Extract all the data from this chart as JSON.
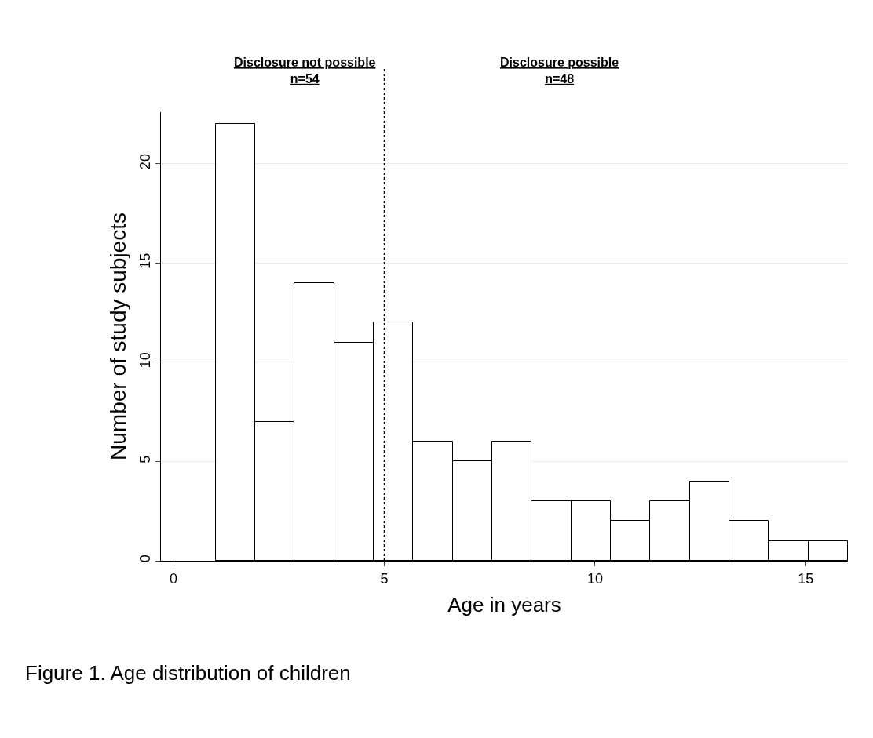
{
  "chart_data": {
    "type": "histogram",
    "xlabel": "Age in years",
    "ylabel": "Number of study subjects",
    "bins": [
      1,
      1.9375,
      2.875,
      3.8125,
      4.75,
      5.6875,
      6.625,
      7.5625,
      8.5,
      9.4375,
      10.375,
      11.3125,
      12.25,
      13.1875,
      14.125,
      15.0625,
      16
    ],
    "values": [
      22,
      7,
      14,
      11,
      12,
      6,
      5,
      6,
      3,
      3,
      2,
      3,
      4,
      2,
      1,
      1
    ],
    "color": "#ffffff",
    "xlim": [
      -0.3,
      16
    ],
    "xticks": [
      0,
      5,
      10,
      15
    ],
    "ylim": [
      0,
      22.6
    ],
    "yticks": [
      0,
      5,
      10,
      15,
      20
    ],
    "grid": "y",
    "ref_lines": [
      {
        "axis": "x",
        "value": 5,
        "line_style": "dotted",
        "color": "#000000"
      }
    ],
    "annotations": [
      "Disclosure not possible\nn=54",
      "Disclosure possible\nn=48",
      "Figure 1. Age distribution of children"
    ]
  }
}
